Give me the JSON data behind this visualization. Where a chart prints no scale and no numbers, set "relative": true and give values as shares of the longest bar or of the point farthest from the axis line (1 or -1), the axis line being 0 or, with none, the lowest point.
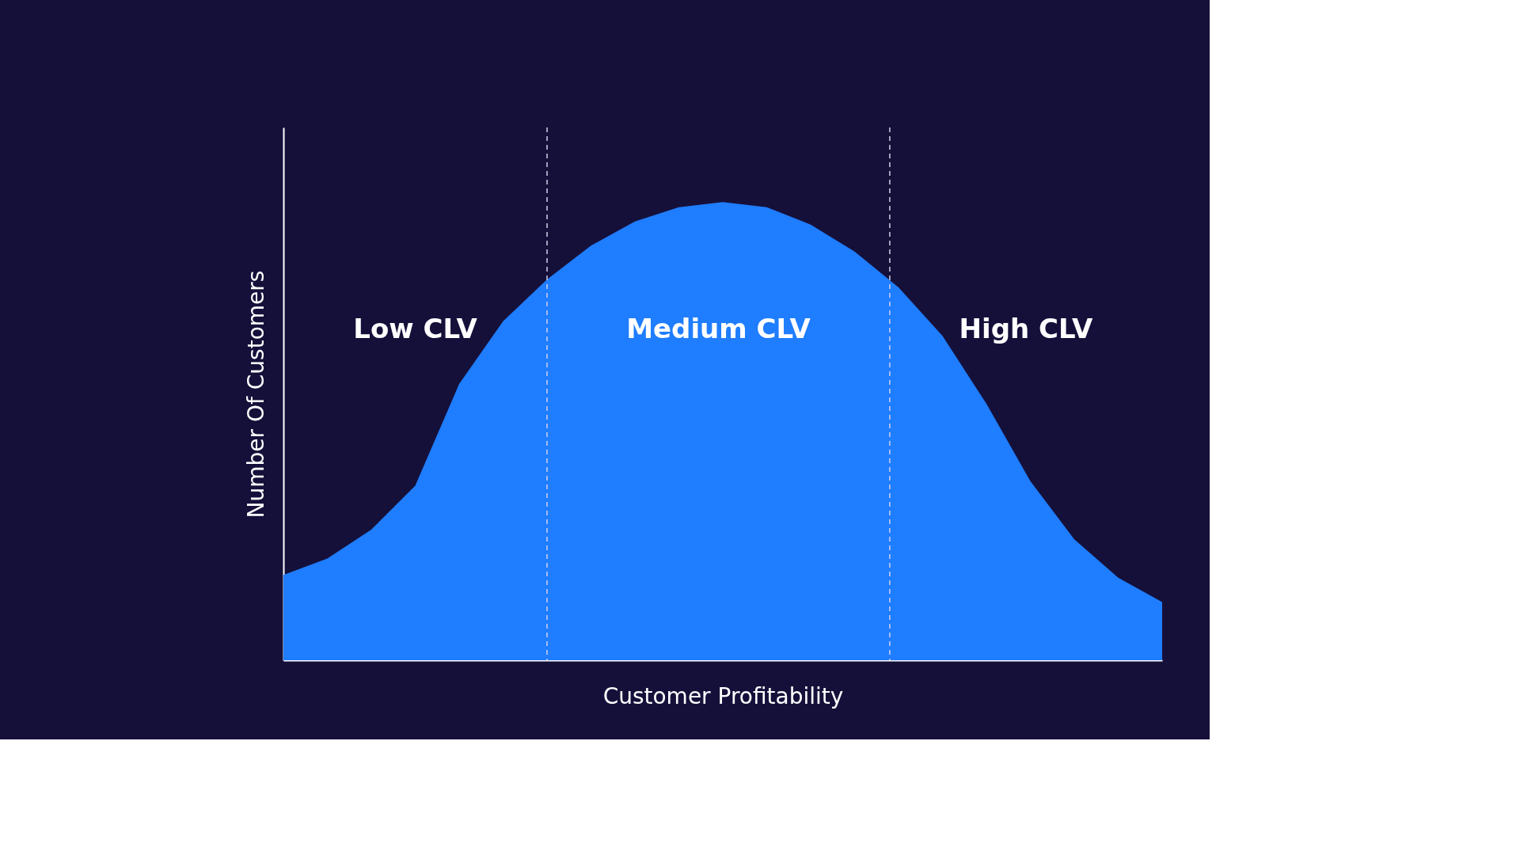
{
  "chart_data": {
    "type": "area",
    "relative": true,
    "xlabel": "Customer Profitability",
    "ylabel": "Number Of Customers",
    "categories": [
      null,
      null,
      null,
      null,
      null,
      null,
      null,
      null,
      null,
      null,
      null,
      null,
      null,
      null,
      null,
      null,
      null,
      null,
      null,
      null,
      null
    ],
    "grid": false,
    "series": [
      {
        "color": "#1f7dff",
        "values": [
          0.186,
          0.222,
          0.285,
          0.381,
          0.603,
          0.74,
          0.831,
          0.905,
          0.958,
          0.989,
          1,
          0.989,
          0.951,
          0.892,
          0.814,
          0.708,
          0.56,
          0.391,
          0.264,
          0.18,
          0.127
        ]
      }
    ],
    "annotations": [
      "Low CLV",
      "Medium CLV",
      "High CLV"
    ]
  }
}
